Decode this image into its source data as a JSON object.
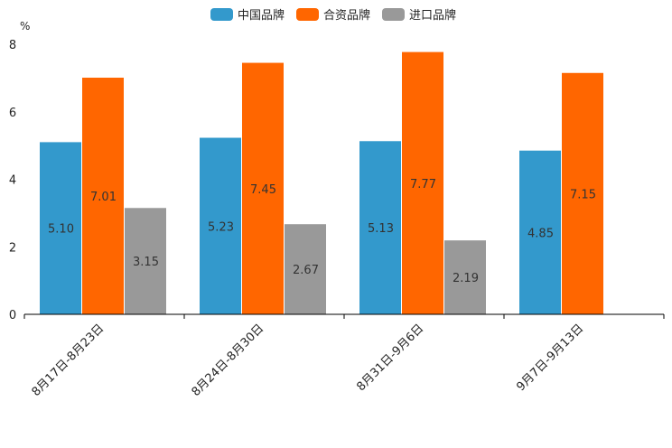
{
  "chart_data": {
    "type": "bar",
    "title": "",
    "ylabel": "%",
    "xlabel": "",
    "ylim": [
      0,
      8
    ],
    "yticks": [
      0,
      2,
      4,
      6,
      8
    ],
    "categories": [
      "8月17日-8月23日",
      "8月24日-8月30日",
      "8月31日-9月6日",
      "9月7日-9月13日"
    ],
    "series": [
      {
        "name": "中国品牌",
        "color": "#3399cc",
        "values": [
          5.1,
          5.23,
          5.13,
          4.85
        ]
      },
      {
        "name": "合资品牌",
        "color": "#ff6600",
        "values": [
          7.01,
          7.45,
          7.77,
          7.15
        ]
      },
      {
        "name": "进口品牌",
        "color": "#999999",
        "values": [
          3.15,
          2.67,
          2.19,
          null
        ]
      }
    ],
    "legend_position": "top-center",
    "grid": false
  }
}
